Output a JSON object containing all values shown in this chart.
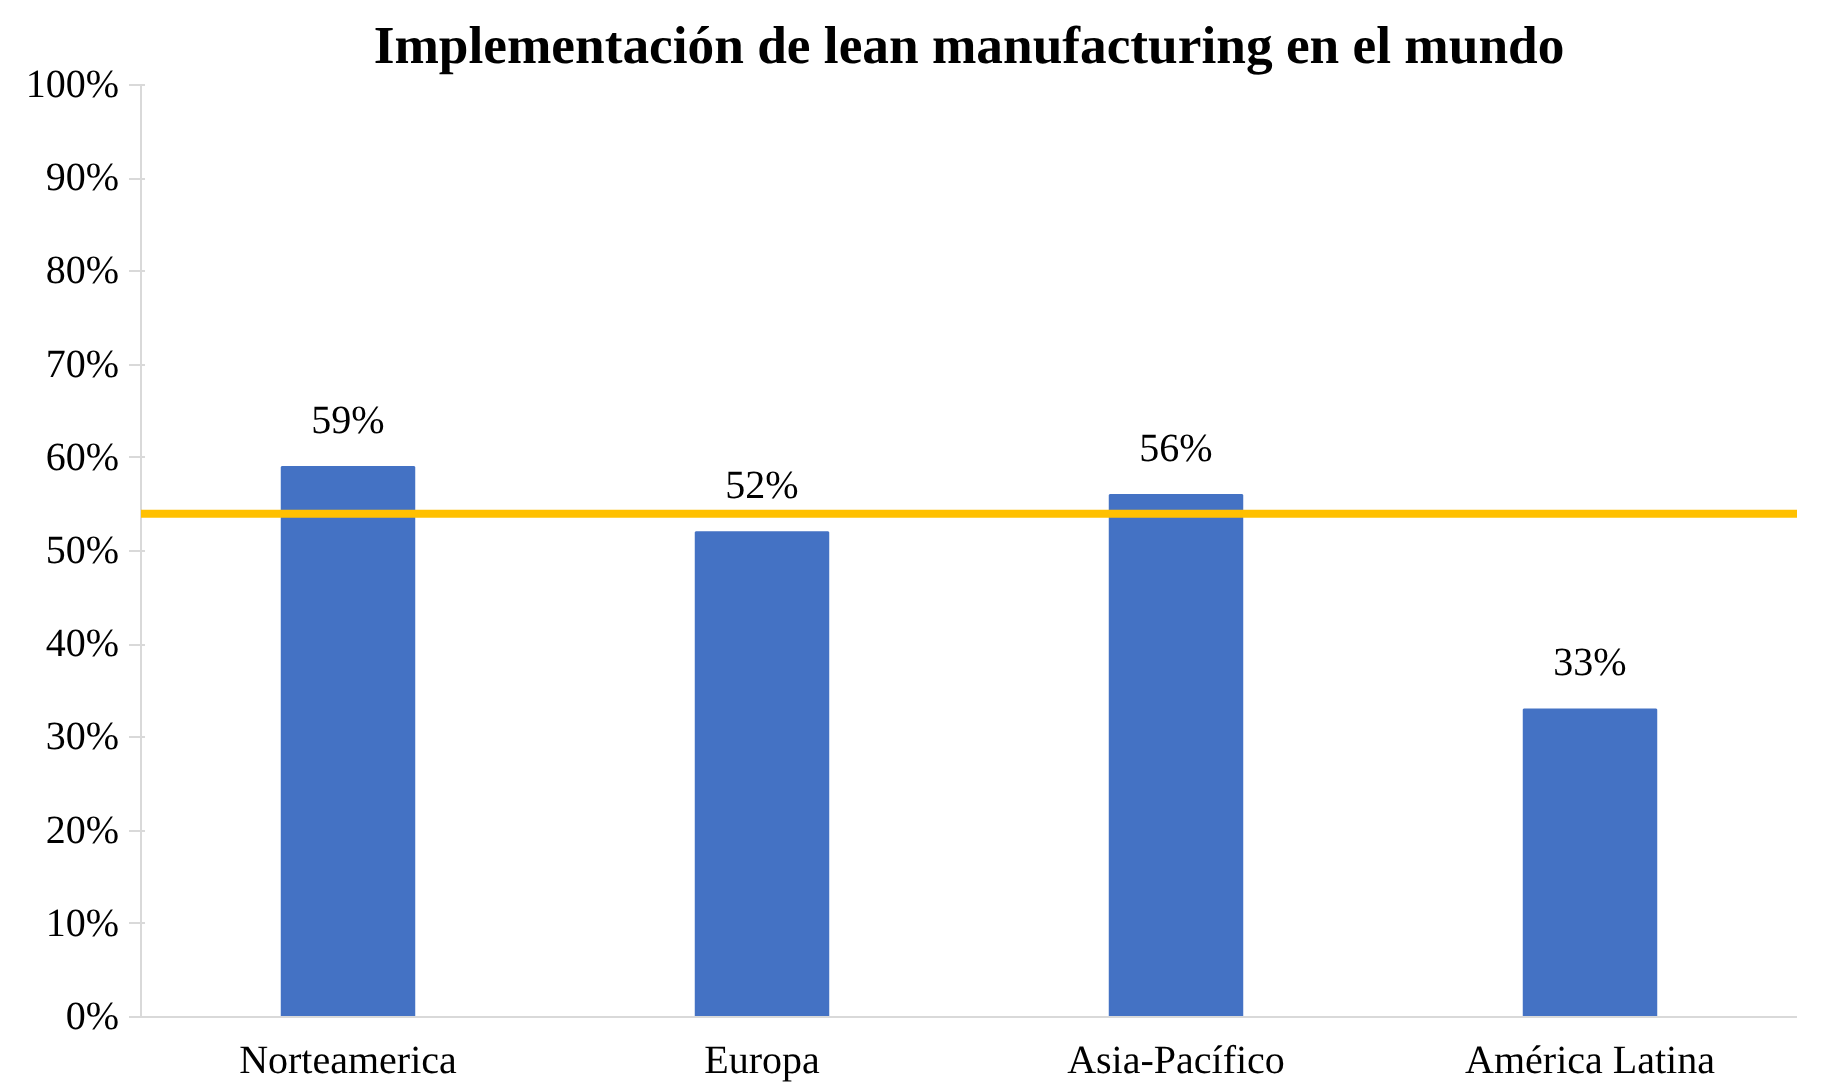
{
  "chart_data": {
    "type": "bar",
    "title": "Implementación de lean manufacturing en el mundo",
    "categories": [
      "Norteamerica",
      "Europa",
      "Asia-Pacífico",
      "América Latina"
    ],
    "values": [
      59,
      52,
      56,
      33
    ],
    "color": "#4472c4",
    "value_labels": [
      "59%",
      "52%",
      "56%",
      "33%"
    ],
    "ylim": [
      0,
      100
    ],
    "yticks": [
      {
        "value": 0,
        "label": "0%"
      },
      {
        "value": 10,
        "label": "10%"
      },
      {
        "value": 20,
        "label": "20%"
      },
      {
        "value": 30,
        "label": "30%"
      },
      {
        "value": 40,
        "label": "40%"
      },
      {
        "value": 50,
        "label": "50%"
      },
      {
        "value": 60,
        "label": "60%"
      },
      {
        "value": 70,
        "label": "70%"
      },
      {
        "value": 80,
        "label": "80%"
      },
      {
        "value": 90,
        "label": "90%"
      },
      {
        "value": 100,
        "label": "100%"
      }
    ],
    "ref_lines": [
      {
        "axis": "y",
        "value": 54,
        "color": "#ffc000"
      }
    ],
    "grid": false
  }
}
